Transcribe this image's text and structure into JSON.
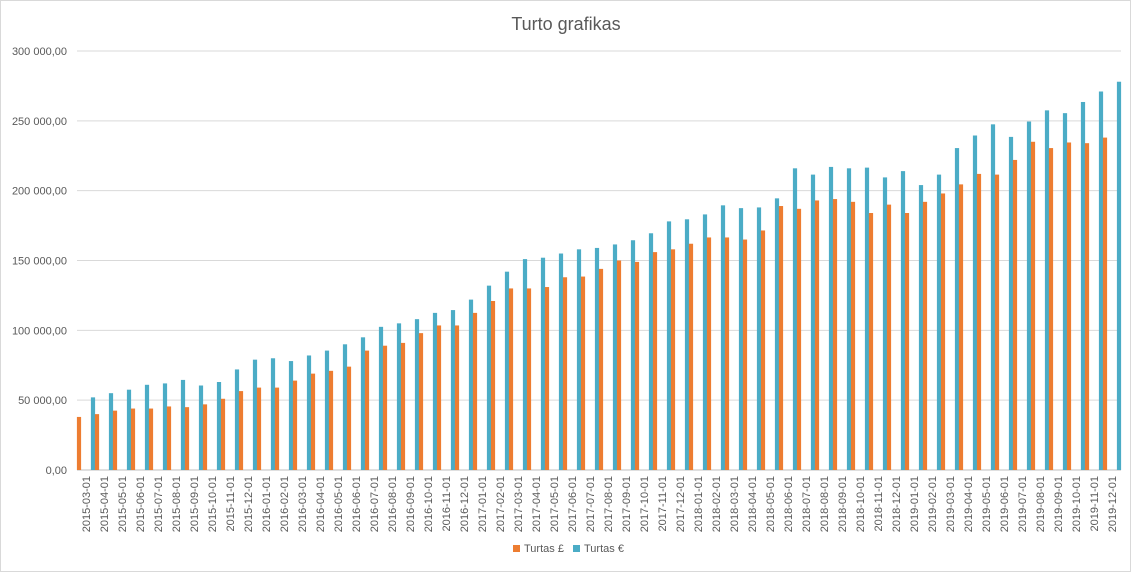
{
  "chart_data": {
    "type": "bar",
    "title": "Turto grafikas",
    "xlabel": "",
    "ylabel": "",
    "ylim": [
      0,
      300000
    ],
    "y_ticks": [
      0,
      50000,
      100000,
      150000,
      200000,
      250000,
      300000
    ],
    "y_tick_labels": [
      "0,00",
      "50 000,00",
      "100 000,00",
      "150 000,00",
      "200 000,00",
      "250 000,00",
      "300 000,00"
    ],
    "grid": true,
    "legend_position": "bottom",
    "categories": [
      "2015-03-01",
      "2015-04-01",
      "2015-05-01",
      "2015-06-01",
      "2015-07-01",
      "2015-08-01",
      "2015-09-01",
      "2015-10-01",
      "2015-11-01",
      "2015-12-01",
      "2016-01-01",
      "2016-02-01",
      "2016-03-01",
      "2016-04-01",
      "2016-05-01",
      "2016-06-01",
      "2016-07-01",
      "2016-08-01",
      "2016-09-01",
      "2016-10-01",
      "2016-11-01",
      "2016-12-01",
      "2017-01-01",
      "2017-02-01",
      "2017-03-01",
      "2017-04-01",
      "2017-05-01",
      "2017-06-01",
      "2017-07-01",
      "2017-08-01",
      "2017-09-01",
      "2017-10-01",
      "2017-11-01",
      "2017-12-01",
      "2018-01-01",
      "2018-02-01",
      "2018-03-01",
      "2018-04-01",
      "2018-05-01",
      "2018-06-01",
      "2018-07-01",
      "2018-08-01",
      "2018-09-01",
      "2018-10-01",
      "2018-11-01",
      "2018-12-01",
      "2019-01-01",
      "2019-02-01",
      "2019-03-01",
      "2019-04-01",
      "2019-05-01",
      "2019-06-01",
      "2019-07-01",
      "2019-08-01",
      "2019-09-01",
      "2019-10-01",
      "2019-11-01",
      "2019-12-01"
    ],
    "series": [
      {
        "name": "Turtas £",
        "color": "#ED7D31",
        "values": [
          38000,
          40000,
          42500,
          44000,
          44000,
          45500,
          45000,
          47000,
          51000,
          56500,
          59000,
          59000,
          64000,
          69000,
          71000,
          74000,
          85500,
          89000,
          91000,
          98000,
          103500,
          103500,
          112500,
          121000,
          130000,
          130000,
          131000,
          138000,
          138500,
          144000,
          150000,
          149000,
          156000,
          158000,
          162000,
          166500,
          166500,
          165000,
          171500,
          189000,
          187000,
          193000,
          194000,
          192000,
          184000,
          190000,
          184000,
          192000,
          198000,
          204500,
          212000,
          211500,
          222000,
          235000,
          230500,
          234500,
          234000,
          238000
        ]
      },
      {
        "name": "Turtas €",
        "color": "#4BACC6",
        "values": [
          52000,
          55000,
          57500,
          61000,
          62000,
          64500,
          60500,
          63000,
          72000,
          79000,
          80000,
          78000,
          82000,
          85500,
          90000,
          95000,
          102500,
          105000,
          108000,
          112500,
          114500,
          122000,
          132000,
          142000,
          151000,
          152000,
          155000,
          158000,
          159000,
          161500,
          164500,
          169500,
          178000,
          179500,
          183000,
          189500,
          187500,
          188000,
          194500,
          216000,
          211500,
          217000,
          216000,
          216500,
          209500,
          214000,
          204000,
          211500,
          230500,
          239500,
          247500,
          238500,
          249500,
          257500,
          255500,
          263500,
          271000,
          278000
        ]
      }
    ]
  }
}
